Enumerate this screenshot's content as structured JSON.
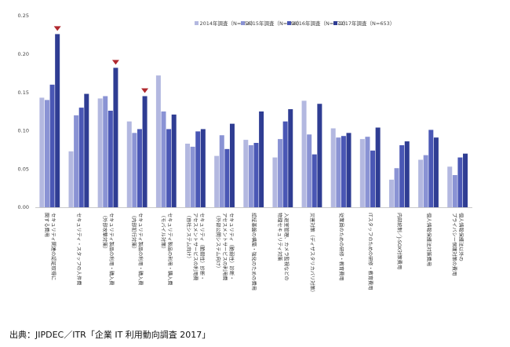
{
  "chart_data": {
    "type": "bar",
    "title": "",
    "xlabel": "",
    "ylabel": "",
    "ylim": [
      0,
      0.25
    ],
    "yticks": [
      "0.00",
      "0.05",
      "0.10",
      "0.15",
      "0.20",
      "0.25"
    ],
    "legend_position": "top-right",
    "grid": false,
    "categories": [
      [
        "セキュリティ関連の認証取得に",
        "関する費用"
      ],
      [
        "セキュリティ・スタッフの人件費"
      ],
      [
        "セキュリティ製品の利用・購入費",
        "（外部攻撃対策）"
      ],
      [
        "セキュリティ製品の利用・購入費",
        "（内部犯行対策）"
      ],
      [
        "セキュリティ製品の利用・購入費",
        "（モバイル対策）"
      ],
      [
        "セキュリティ（脆弱性）診断・",
        "アセスメントサービスの利用費",
        "（自社システム向け）"
      ],
      [
        "セキュリティ（脆弱性）診断・",
        "アセスメントサービスの利用費",
        "（外部公開システム向け）"
      ],
      [
        "認証基盤の構築・強化のための費用"
      ],
      [
        "入退室管理、カメラ監視などの",
        "物理セキュリティ対策"
      ],
      [
        "災害対策（ディザスタリカバリ対策）"
      ],
      [
        "従業員のための研修・教育費用"
      ],
      [
        "ITスタッフのための研修・教育費用"
      ],
      [
        "内部統制／J-SOX対策費用"
      ],
      [
        "個人情報保護法対策費用"
      ],
      [
        "個人情報保護法以外の",
        "プライバシー保護対策の費用"
      ]
    ],
    "series": [
      {
        "name": "2014年調査（N=656）",
        "color": "#b3b8e0",
        "values": [
          0.143,
          0.073,
          0.142,
          0.112,
          0.172,
          0.083,
          0.067,
          0.088,
          0.065,
          0.139,
          0.103,
          0.089,
          0.036,
          0.062,
          0.053
        ]
      },
      {
        "name": "2015年調査（N=698）",
        "color": "#8a93d4",
        "values": [
          0.14,
          0.12,
          0.145,
          0.097,
          0.125,
          0.079,
          0.094,
          0.081,
          0.089,
          0.095,
          0.091,
          0.092,
          0.051,
          0.068,
          0.042
        ]
      },
      {
        "name": "2016年調査（N=672）",
        "color": "#4a57b5",
        "values": [
          0.16,
          0.13,
          0.126,
          0.102,
          0.102,
          0.099,
          0.076,
          0.084,
          0.112,
          0.069,
          0.093,
          0.074,
          0.081,
          0.101,
          0.065
        ]
      },
      {
        "name": "2017年調査（N=653）",
        "color": "#2f3d93",
        "values": [
          0.226,
          0.148,
          0.182,
          0.145,
          0.121,
          0.102,
          0.109,
          0.125,
          0.128,
          0.135,
          0.097,
          0.104,
          0.086,
          0.091,
          0.07
        ]
      }
    ],
    "highlight_markers": [
      0,
      2,
      3
    ],
    "highlight_color": "#b0282e"
  },
  "source": "出典：JIPDEC／ITR「企業 IT 利用動向調査 2017」"
}
